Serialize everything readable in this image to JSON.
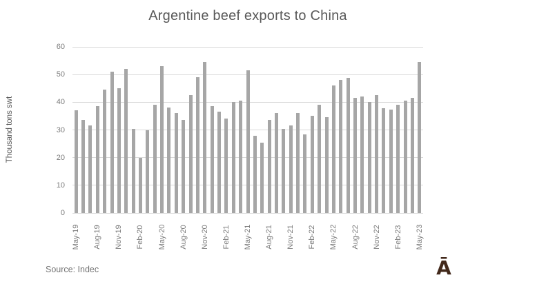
{
  "footer": {
    "source": "Source: Indec",
    "logo_text": "Ā"
  },
  "chart_data": {
    "type": "bar",
    "title": "Argentine beef exports to China",
    "xlabel": "",
    "ylabel": "Thousand tons swt",
    "ylim": [
      0,
      60
    ],
    "yticks": [
      0,
      10,
      20,
      30,
      40,
      50,
      60
    ],
    "grid": true,
    "legend": false,
    "x_label_every": 3,
    "bar_color": "#a6a6a6",
    "gridline_color": "#d9d9d9",
    "categories": [
      "May-19",
      "Jun-19",
      "Jul-19",
      "Aug-19",
      "Sep-19",
      "Oct-19",
      "Nov-19",
      "Dec-19",
      "Jan-20",
      "Feb-20",
      "Mar-20",
      "Apr-20",
      "May-20",
      "Jun-20",
      "Jul-20",
      "Aug-20",
      "Sep-20",
      "Oct-20",
      "Nov-20",
      "Dec-20",
      "Jan-21",
      "Feb-21",
      "Mar-21",
      "Apr-21",
      "May-21",
      "Jun-21",
      "Jul-21",
      "Aug-21",
      "Sep-21",
      "Oct-21",
      "Nov-21",
      "Dec-21",
      "Jan-22",
      "Feb-22",
      "Mar-22",
      "Apr-22",
      "May-22",
      "Jun-22",
      "Jul-22",
      "Aug-22",
      "Sep-22",
      "Oct-22",
      "Nov-22",
      "Dec-22",
      "Jan-23",
      "Feb-23",
      "Mar-23",
      "Apr-23",
      "May-23"
    ],
    "values": [
      37,
      33.5,
      31.5,
      38.5,
      44.5,
      51,
      45,
      52,
      30.5,
      19.8,
      30,
      39,
      53,
      38,
      36,
      33.5,
      42.5,
      49,
      54.5,
      38.5,
      36.5,
      34,
      40,
      40.5,
      51.5,
      28,
      25.5,
      33.5,
      36,
      30.5,
      31.5,
      36,
      28.5,
      35,
      39,
      34.5,
      46,
      48,
      48.8,
      41.5,
      42,
      40,
      42.5,
      37.8,
      37.4,
      39,
      40.5,
      41.6,
      54.5
    ]
  }
}
